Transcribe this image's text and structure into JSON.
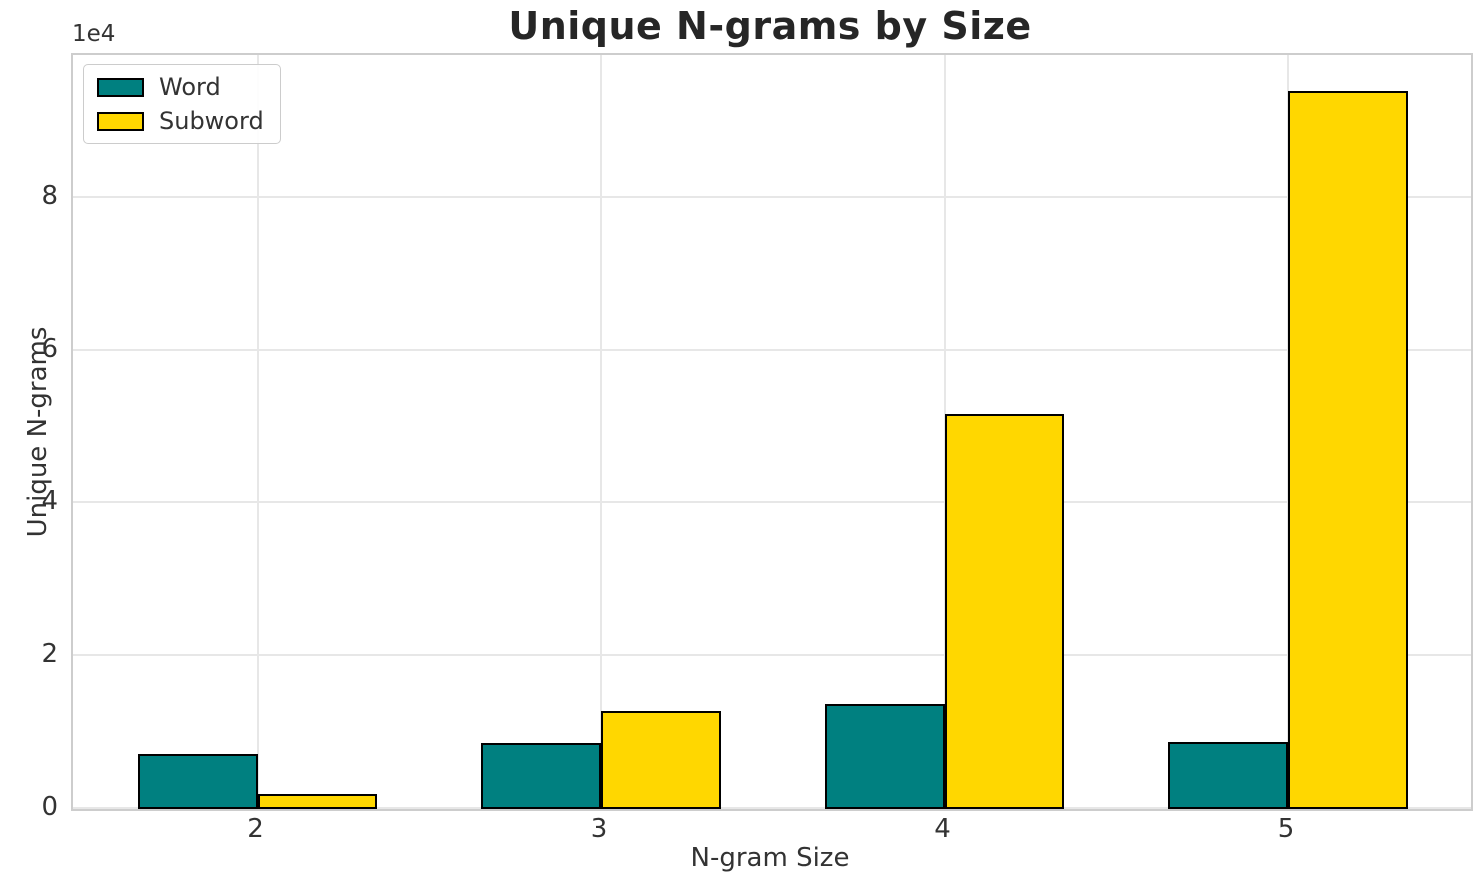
{
  "chart_data": {
    "type": "bar",
    "title": "Unique N-grams by Size",
    "xlabel": "N-gram Size",
    "ylabel": "Unique N-grams",
    "y_offset_label": "1e4",
    "categories": [
      "2",
      "3",
      "4",
      "5"
    ],
    "series": [
      {
        "name": "Word",
        "color": "#008080",
        "values": [
          7200,
          8700,
          13700,
          8800
        ]
      },
      {
        "name": "Subword",
        "color": "#FFD700",
        "values": [
          1950,
          12800,
          51700,
          94000
        ]
      }
    ],
    "bar_edge_color": "#000000",
    "ylim": [
      0,
      98700
    ],
    "yticks": [
      0,
      20000,
      40000,
      60000,
      80000
    ],
    "ytick_labels": [
      "0",
      "2",
      "4",
      "6",
      "8"
    ],
    "grid": true,
    "legend_position": "upper left",
    "colors": {
      "grid": "#e7e7e7",
      "spine": "#cdcdcd",
      "text": "#333333",
      "title": "#262626",
      "background": "#ffffff"
    }
  }
}
